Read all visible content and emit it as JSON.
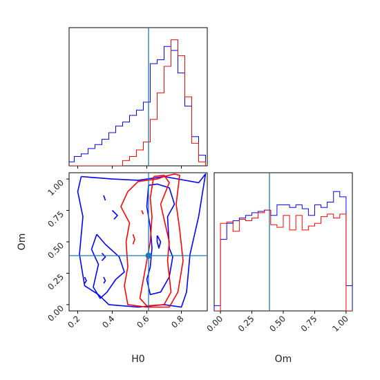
{
  "chart_data": {
    "type": "corner",
    "parameters": [
      "H0",
      "Om"
    ],
    "truth": {
      "H0": 0.61,
      "Om": 0.39
    },
    "series": [
      {
        "color": "#0000ff"
      },
      {
        "color": "#ff0000"
      }
    ],
    "truth_color": "#1f77b4",
    "panels": {
      "H0_hist": {
        "type": "histogram",
        "xlim": [
          0.15,
          0.95
        ],
        "ylim": [
          0,
          1
        ],
        "xticks": [
          0.2,
          0.4,
          0.6,
          0.8
        ],
        "bin_edges": [
          0.1,
          0.14,
          0.18,
          0.22,
          0.26,
          0.3,
          0.34,
          0.38,
          0.42,
          0.46,
          0.5,
          0.54,
          0.58,
          0.62,
          0.66,
          0.7,
          0.74,
          0.78,
          0.82,
          0.86,
          0.9,
          0.94
        ],
        "blue_counts": [
          0.02,
          0.03,
          0.07,
          0.09,
          0.13,
          0.16,
          0.2,
          0.25,
          0.3,
          0.33,
          0.38,
          0.42,
          0.48,
          0.77,
          0.8,
          0.9,
          0.87,
          0.7,
          0.45,
          0.22,
          0.08
        ],
        "red_counts": [
          0,
          0,
          0,
          0,
          0,
          0,
          0,
          0,
          0,
          0.04,
          0.07,
          0.12,
          0.18,
          0.35,
          0.55,
          0.75,
          0.95,
          0.83,
          0.52,
          0.17,
          0.03
        ]
      },
      "Om_hist": {
        "type": "histogram",
        "xlim": [
          -0.05,
          1.05
        ],
        "ylim": [
          0,
          1
        ],
        "xticks": [
          0.0,
          0.25,
          0.5,
          0.75,
          1.0
        ],
        "xtick_labels": [
          "0.00",
          "0.25",
          "0.50",
          "0.75",
          "1.00"
        ],
        "bin_edges": [
          -0.05,
          0.0,
          0.05,
          0.1,
          0.15,
          0.2,
          0.25,
          0.3,
          0.35,
          0.4,
          0.45,
          0.5,
          0.55,
          0.6,
          0.65,
          0.7,
          0.75,
          0.8,
          0.85,
          0.9,
          0.95,
          1.0,
          1.05
        ],
        "blue_counts": [
          0.04,
          0.54,
          0.66,
          0.68,
          0.7,
          0.72,
          0.74,
          0.75,
          0.76,
          0.72,
          0.8,
          0.8,
          0.78,
          0.8,
          0.77,
          0.72,
          0.8,
          0.78,
          0.82,
          0.9,
          0.86,
          0.19
        ],
        "red_counts": [
          0,
          0.66,
          0.67,
          0.6,
          0.69,
          0.68,
          0.7,
          0.74,
          0.76,
          0.65,
          0.63,
          0.72,
          0.61,
          0.72,
          0.61,
          0.64,
          0.66,
          0.71,
          0.73,
          0.7,
          0.73,
          0
        ]
      },
      "joint": {
        "type": "contour",
        "xlabel": "H0",
        "ylabel": "Om",
        "xlim": [
          0.15,
          0.95
        ],
        "ylim": [
          -0.05,
          1.05
        ],
        "xticks": [
          0.2,
          0.4,
          0.6,
          0.8
        ],
        "yticks": [
          0.0,
          0.25,
          0.5,
          0.75,
          1.0
        ],
        "ytick_labels": [
          "0.00",
          "0.25",
          "0.50",
          "0.75",
          "1.00"
        ],
        "blue_contours": [
          [
            [
              0.22,
              1.02
            ],
            [
              0.4,
              1.0
            ],
            [
              0.55,
              0.99
            ],
            [
              0.7,
              1.02
            ],
            [
              0.78,
              1.0
            ],
            [
              0.86,
              0.98
            ],
            [
              0.9,
              0.97
            ],
            [
              0.94,
              1.04
            ],
            [
              0.9,
              0.7
            ],
            [
              0.85,
              0.4
            ],
            [
              0.83,
              0.1
            ],
            [
              0.8,
              -0.02
            ],
            [
              0.7,
              0.0
            ],
            [
              0.55,
              -0.02
            ],
            [
              0.38,
              0.0
            ],
            [
              0.32,
              0.08
            ],
            [
              0.24,
              0.15
            ],
            [
              0.21,
              0.4
            ],
            [
              0.23,
              0.7
            ],
            [
              0.2,
              0.9
            ],
            [
              0.22,
              1.02
            ]
          ],
          [
            [
              0.61,
              0.95
            ],
            [
              0.66,
              0.96
            ],
            [
              0.73,
              0.93
            ],
            [
              0.76,
              0.8
            ],
            [
              0.72,
              0.7
            ],
            [
              0.73,
              0.45
            ],
            [
              0.75,
              0.38
            ],
            [
              0.73,
              0.22
            ],
            [
              0.68,
              0.1
            ],
            [
              0.62,
              0.08
            ],
            [
              0.6,
              0.2
            ],
            [
              0.62,
              0.3
            ],
            [
              0.63,
              0.45
            ],
            [
              0.62,
              0.62
            ],
            [
              0.6,
              0.78
            ],
            [
              0.61,
              0.95
            ]
          ],
          [
            [
              0.31,
              0.56
            ],
            [
              0.36,
              0.48
            ],
            [
              0.44,
              0.38
            ],
            [
              0.47,
              0.26
            ],
            [
              0.42,
              0.2
            ],
            [
              0.37,
              0.1
            ],
            [
              0.33,
              0.05
            ],
            [
              0.29,
              0.14
            ],
            [
              0.32,
              0.32
            ],
            [
              0.28,
              0.44
            ],
            [
              0.31,
              0.56
            ]
          ],
          [
            [
              0.35,
              0.87
            ],
            [
              0.36,
              0.83
            ]
          ],
          [
            [
              0.34,
              0.41
            ],
            [
              0.36,
              0.38
            ],
            [
              0.34,
              0.35
            ]
          ],
          [
            [
              0.24,
              0.22
            ],
            [
              0.25,
              0.19
            ],
            [
              0.24,
              0.17
            ]
          ],
          [
            [
              0.35,
              0.22
            ],
            [
              0.36,
              0.19
            ],
            [
              0.35,
              0.17
            ]
          ],
          [
            [
              0.4,
              0.75
            ],
            [
              0.43,
              0.71
            ],
            [
              0.41,
              0.68
            ]
          ],
          [
            [
              0.66,
              0.55
            ],
            [
              0.68,
              0.5
            ],
            [
              0.67,
              0.45
            ],
            [
              0.66,
              0.5
            ],
            [
              0.66,
              0.55
            ]
          ]
        ],
        "red_contours": [
          [
            [
              0.64,
              1.02
            ],
            [
              0.7,
              1.03
            ],
            [
              0.73,
              0.97
            ],
            [
              0.68,
              0.8
            ],
            [
              0.7,
              0.68
            ],
            [
              0.73,
              0.5
            ],
            [
              0.72,
              0.35
            ],
            [
              0.74,
              0.1
            ],
            [
              0.7,
              0.0
            ],
            [
              0.6,
              -0.01
            ],
            [
              0.56,
              0.05
            ],
            [
              0.58,
              0.2
            ],
            [
              0.6,
              0.35
            ],
            [
              0.62,
              0.5
            ],
            [
              0.63,
              0.7
            ],
            [
              0.62,
              0.85
            ],
            [
              0.64,
              1.02
            ]
          ],
          [
            [
              0.76,
              1.04
            ],
            [
              0.79,
              1.03
            ],
            [
              0.77,
              0.8
            ],
            [
              0.79,
              0.6
            ],
            [
              0.81,
              0.35
            ],
            [
              0.78,
              0.1
            ],
            [
              0.73,
              -0.02
            ],
            [
              0.6,
              -0.02
            ],
            [
              0.49,
              0.0
            ],
            [
              0.47,
              0.15
            ],
            [
              0.49,
              0.3
            ],
            [
              0.48,
              0.5
            ],
            [
              0.5,
              0.65
            ],
            [
              0.45,
              0.78
            ],
            [
              0.49,
              0.9
            ],
            [
              0.55,
              0.98
            ],
            [
              0.66,
              1.0
            ],
            [
              0.7,
              1.02
            ],
            [
              0.76,
              1.04
            ]
          ],
          [
            [
              0.52,
              0.56
            ],
            [
              0.53,
              0.52
            ],
            [
              0.52,
              0.48
            ]
          ],
          [
            [
              0.57,
              0.75
            ],
            [
              0.58,
              0.72
            ]
          ]
        ],
        "truth_point": {
          "x": 0.61,
          "y": 0.39
        }
      }
    }
  }
}
